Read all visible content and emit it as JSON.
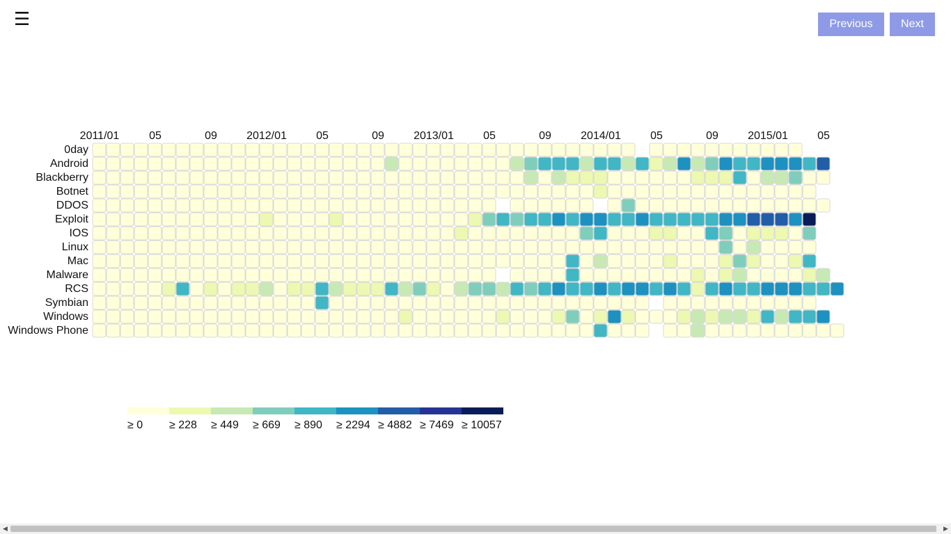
{
  "toolbar": {
    "menu_icon": "hamburger-icon",
    "menu_glyph": "☰",
    "previous_label": "Previous",
    "next_label": "Next"
  },
  "chart_data": {
    "type": "heatmap",
    "title": "",
    "start_month": "2011/01",
    "end_month": "2015/06",
    "x_tick_labels": [
      "2011/01",
      "05",
      "09",
      "2012/01",
      "05",
      "09",
      "2013/01",
      "05",
      "09",
      "2014/01",
      "05",
      "09",
      "2015/01",
      "05"
    ],
    "rows": [
      "0day",
      "Android",
      "Blackberry",
      "Botnet",
      "DDOS",
      "Exploit",
      "IOS",
      "Linux",
      "Mac",
      "Malware",
      "RCS",
      "Symbian",
      "Windows",
      "Windows Phone"
    ],
    "color_scale": {
      "thresholds": [
        0,
        228,
        449,
        669,
        890,
        2294,
        4882,
        7469,
        10057
      ],
      "labels": [
        "≥ 0",
        "≥ 228",
        "≥ 449",
        "≥ 669",
        "≥ 890",
        "≥ 2294",
        "≥ 4882",
        "≥ 7469",
        "≥ 10057"
      ],
      "colors": [
        "#ffffd9",
        "#edf8b1",
        "#c7e9b4",
        "#7fcdbb",
        "#41b6c4",
        "#1d91c0",
        "#225ea8",
        "#253494",
        "#081d58"
      ]
    },
    "cells": [
      "00000000000000000000000000000000000000000000000000000",
      "0000000000000000000020000000000000001343324344233155332244543",
      "0000000000000000000000000000000000000000000000000000",
      "000000000000000000000000000000000000000000000000000",
      "0000000000000000000000000000000000000000000000000000",
      "000000000000000000000000000000000000000000000000000000",
      "0000000000000000000000000000000000000000000000000000",
      "000000000000000000000000000000000000000000000000000",
      "00000000000000000000000000000000000000000000000000000",
      "000000000000000000000000000000000000000000000000000000",
      "000000000000000000000000000000000000000000000000000000",
      "0000000000000000000000000000000000000000000000000000",
      "000000000000000000000000000000000000000000000000000000",
      "00000000000000000000000000000000000000000000000000000"
    ],
    "cell_values": {
      "0day": [
        "0",
        "0",
        "0",
        "0",
        "0",
        "0",
        "0",
        "0",
        "0",
        "0",
        "0",
        "0",
        "0",
        "0",
        "0",
        "0",
        "0",
        "0",
        "0",
        "0",
        "0",
        "0",
        "0",
        "0",
        "0",
        "0",
        "0",
        "0",
        "0",
        "0",
        "0",
        "0",
        "0",
        "0",
        "0",
        "0",
        "0",
        "0",
        "0",
        "",
        "0",
        "0",
        "0",
        "0",
        "0",
        "0",
        "0",
        "0",
        "0",
        "0",
        "0",
        "",
        ""
      ],
      "Android": [
        "0",
        "0",
        "0",
        "0",
        "0",
        "0",
        "0",
        "0",
        "0",
        "0",
        "0",
        "0",
        "0",
        "0",
        "0",
        "0",
        "0",
        "0",
        "0",
        "0",
        "0",
        "2",
        "0",
        "0",
        "0",
        "0",
        "0",
        "0",
        "0",
        "0",
        "2",
        "3",
        "4",
        "4",
        "4",
        "2",
        "4",
        "4",
        "2",
        "4",
        "1",
        "2",
        "5",
        "2",
        "3",
        "5",
        "4",
        "4",
        "5",
        "5",
        "5",
        "4",
        "6",
        ""
      ],
      "Blackberry": [
        "0",
        "0",
        "0",
        "0",
        "0",
        "0",
        "0",
        "0",
        "0",
        "0",
        "0",
        "0",
        "0",
        "0",
        "0",
        "0",
        "0",
        "0",
        "0",
        "0",
        "0",
        "0",
        "0",
        "0",
        "0",
        "0",
        "0",
        "0",
        "0",
        "0",
        "0",
        "2",
        "0",
        "2",
        "1",
        "1",
        "1",
        "0",
        "0",
        "0",
        "0",
        "0",
        "0",
        "1",
        "1",
        "1",
        "4",
        "0",
        "2",
        "2",
        "3",
        "0",
        "0",
        ""
      ],
      "Botnet": [
        "0",
        "0",
        "0",
        "0",
        "0",
        "0",
        "0",
        "0",
        "0",
        "0",
        "0",
        "0",
        "0",
        "0",
        "0",
        "0",
        "0",
        "0",
        "0",
        "0",
        "0",
        "0",
        "0",
        "0",
        "0",
        "0",
        "0",
        "0",
        "0",
        "0",
        "0",
        "0",
        "0",
        "0",
        "0",
        "0",
        "1",
        "0",
        "0",
        "0",
        "0",
        "0",
        "0",
        "0",
        "0",
        "0",
        "0",
        "0",
        "0",
        "0",
        "0",
        "0",
        "",
        ""
      ],
      "DDOS": [
        "0",
        "0",
        "0",
        "0",
        "0",
        "0",
        "0",
        "0",
        "0",
        "0",
        "0",
        "0",
        "0",
        "0",
        "0",
        "0",
        "0",
        "0",
        "0",
        "0",
        "0",
        "0",
        "0",
        "0",
        "0",
        "0",
        "0",
        "0",
        "0",
        "",
        "0",
        "0",
        "0",
        "0",
        "0",
        "0",
        "",
        "0",
        "3",
        "0",
        "0",
        "0",
        "0",
        "0",
        "0",
        "0",
        "0",
        "0",
        "0",
        "0",
        "0",
        "0",
        "0",
        ""
      ],
      "Exploit": [
        "0",
        "0",
        "0",
        "0",
        "0",
        "0",
        "0",
        "0",
        "0",
        "0",
        "0",
        "0",
        "1",
        "0",
        "0",
        "0",
        "0",
        "1",
        "0",
        "0",
        "0",
        "0",
        "0",
        "0",
        "0",
        "0",
        "0",
        "1",
        "3",
        "4",
        "3",
        "4",
        "4",
        "5",
        "4",
        "5",
        "5",
        "4",
        "4",
        "5",
        "4",
        "4",
        "4",
        "4",
        "4",
        "5",
        "5",
        "6",
        "6",
        "6",
        "5",
        "8",
        "",
        ""
      ],
      "IOS": [
        "0",
        "0",
        "0",
        "0",
        "0",
        "0",
        "0",
        "0",
        "0",
        "0",
        "0",
        "0",
        "0",
        "0",
        "0",
        "0",
        "0",
        "0",
        "0",
        "0",
        "0",
        "0",
        "0",
        "0",
        "0",
        "0",
        "1",
        "0",
        "0",
        "0",
        "0",
        "0",
        "0",
        "0",
        "0",
        "3",
        "4",
        "0",
        "0",
        "0",
        "1",
        "1",
        "0",
        "0",
        "4",
        "3",
        "0",
        "1",
        "1",
        "1",
        "0",
        "3",
        "",
        ""
      ],
      "Linux": [
        "0",
        "0",
        "0",
        "0",
        "0",
        "0",
        "0",
        "0",
        "0",
        "0",
        "0",
        "0",
        "0",
        "0",
        "0",
        "0",
        "0",
        "0",
        "0",
        "0",
        "0",
        "0",
        "0",
        "0",
        "0",
        "0",
        "0",
        "0",
        "0",
        "0",
        "0",
        "0",
        "0",
        "0",
        "0",
        "0",
        "0",
        "0",
        "0",
        "0",
        "0",
        "0",
        "0",
        "0",
        "0",
        "3",
        "0",
        "2",
        "0",
        "0",
        "0",
        "0",
        "",
        ""
      ],
      "Mac": [
        "0",
        "0",
        "0",
        "0",
        "0",
        "0",
        "0",
        "0",
        "0",
        "0",
        "0",
        "0",
        "0",
        "0",
        "0",
        "0",
        "0",
        "0",
        "0",
        "0",
        "0",
        "0",
        "0",
        "0",
        "0",
        "0",
        "0",
        "0",
        "0",
        "0",
        "0",
        "0",
        "0",
        "0",
        "4",
        "0",
        "2",
        "0",
        "0",
        "0",
        "0",
        "1",
        "0",
        "0",
        "0",
        "1",
        "3",
        "1",
        "0",
        "0",
        "1",
        "4",
        "",
        ""
      ],
      "Malware": [
        "0",
        "0",
        "0",
        "0",
        "0",
        "0",
        "0",
        "0",
        "0",
        "0",
        "0",
        "0",
        "0",
        "0",
        "0",
        "0",
        "0",
        "0",
        "0",
        "0",
        "0",
        "0",
        "0",
        "0",
        "0",
        "0",
        "0",
        "0",
        "0",
        "",
        "0",
        "0",
        "0",
        "0",
        "4",
        "0",
        "0",
        "0",
        "0",
        "0",
        "0",
        "0",
        "0",
        "1",
        "0",
        "1",
        "2",
        "0",
        "0",
        "0",
        "0",
        "1",
        "2",
        ""
      ],
      "RCS": [
        "0",
        "0",
        "0",
        "0",
        "0",
        "1",
        "4",
        "0",
        "1",
        "0",
        "1",
        "1",
        "2",
        "0",
        "1",
        "1",
        "4",
        "2",
        "1",
        "1",
        "1",
        "4",
        "2",
        "3",
        "1",
        "0",
        "2",
        "3",
        "3",
        "2",
        "4",
        "3",
        "4",
        "5",
        "4",
        "4",
        "5",
        "4",
        "5",
        "5",
        "4",
        "5",
        "4",
        "1",
        "4",
        "5",
        "4",
        "4",
        "5",
        "5",
        "5",
        "4",
        "4",
        "5"
      ],
      "Symbian": [
        "0",
        "0",
        "0",
        "0",
        "0",
        "0",
        "0",
        "0",
        "0",
        "0",
        "0",
        "0",
        "0",
        "0",
        "0",
        "0",
        "4",
        "0",
        "0",
        "0",
        "0",
        "0",
        "0",
        "0",
        "0",
        "0",
        "0",
        "0",
        "0",
        "0",
        "0",
        "0",
        "0",
        "0",
        "0",
        "0",
        "0",
        "0",
        "0",
        "0",
        "",
        "0",
        "0",
        "0",
        "0",
        "0",
        "0",
        "0",
        "0",
        "0",
        "0",
        "0",
        "",
        ""
      ],
      "Windows": [
        "0",
        "0",
        "0",
        "0",
        "0",
        "0",
        "0",
        "0",
        "0",
        "0",
        "0",
        "0",
        "0",
        "0",
        "0",
        "0",
        "0",
        "0",
        "0",
        "0",
        "0",
        "0",
        "1",
        "0",
        "0",
        "0",
        "0",
        "0",
        "0",
        "1",
        "0",
        "0",
        "0",
        "1",
        "3",
        "0",
        "1",
        "5",
        "1",
        "0",
        "0",
        "0",
        "1",
        "2",
        "1",
        "2",
        "2",
        "1",
        "4",
        "2",
        "4",
        "4",
        "5",
        ""
      ],
      "Windows Phone": [
        "0",
        "0",
        "0",
        "0",
        "0",
        "0",
        "0",
        "0",
        "0",
        "0",
        "0",
        "0",
        "0",
        "0",
        "0",
        "0",
        "0",
        "0",
        "0",
        "0",
        "0",
        "0",
        "0",
        "0",
        "0",
        "0",
        "0",
        "0",
        "0",
        "0",
        "0",
        "0",
        "0",
        "0",
        "0",
        "0",
        "4",
        "0",
        "0",
        "0",
        "",
        "0",
        "0",
        "2",
        "0",
        "0",
        "0",
        "0",
        "0",
        "0",
        "0",
        "0",
        "0",
        "0"
      ]
    }
  }
}
